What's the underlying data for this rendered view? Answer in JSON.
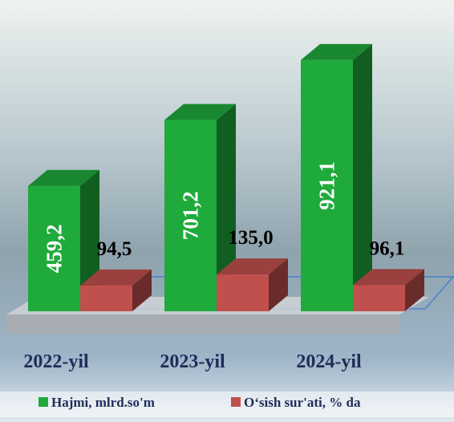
{
  "chart_data": {
    "type": "bar3d",
    "categories": [
      "2022-yil",
      "2023-yil",
      "2024-yil"
    ],
    "series": [
      {
        "name": "Hajmi, mlrd.so'm",
        "color": "#1faa3c",
        "values": [
          459.2,
          701.2,
          921.1
        ],
        "value_labels": [
          "459,2",
          "701,2",
          "921,1"
        ]
      },
      {
        "name": "O‘sish sur'ati, % da",
        "color": "#c0504d",
        "values": [
          94.5,
          135.0,
          96.1
        ],
        "value_labels": [
          "94,5",
          "135,0",
          "96,1"
        ]
      }
    ],
    "ylim": [
      0,
      1000
    ]
  }
}
